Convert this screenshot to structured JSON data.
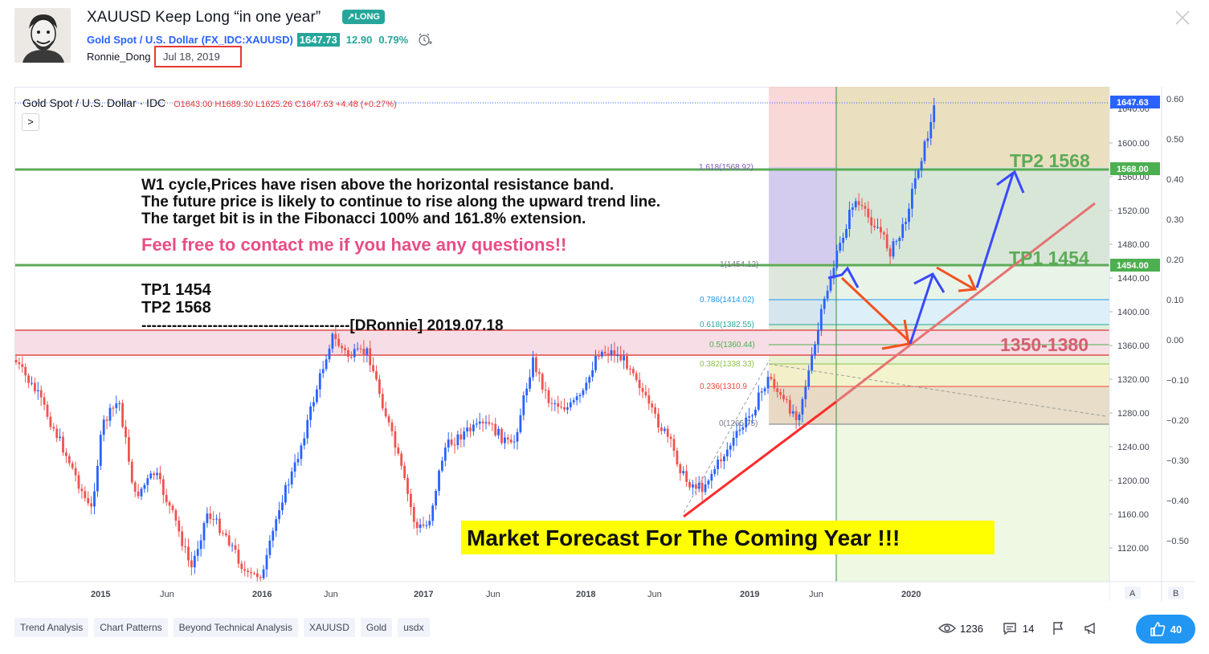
{
  "header": {
    "title": "XAUUSD Keep Long “in one year”",
    "badge": "↗LONG",
    "symbol_name": "Gold Spot / U.S. Dollar",
    "symbol_ticker": "(FX_IDC:XAUUSD)",
    "price": "1647.73",
    "change": "12.90",
    "change_pct": "0.79%",
    "author": "Ronnie_Dong",
    "date": "Jul 18, 2019"
  },
  "chart": {
    "legend_symbol": "Gold Spot / U.S. Dollar · IDC",
    "legend_ohlc": "O1643.00 H1689.30 L1625.26 C1647.63 +4.48 (+0.27%)",
    "collapse_label": ">",
    "x_ticks": [
      "2015",
      "Jun",
      "2016",
      "Jun",
      "2017",
      "Jun",
      "2018",
      "Jun",
      "2019",
      "Jun",
      "2020"
    ],
    "y_ticks": [
      "1640.00",
      "1600.00",
      "1560.00",
      "1520.00",
      "1480.00",
      "1440.00",
      "1400.00",
      "1360.00",
      "1320.00",
      "1280.00",
      "1240.00",
      "1200.00",
      "1160.00",
      "1120.00"
    ],
    "y2_ticks": [
      "0.60",
      "0.50",
      "0.40",
      "0.30",
      "0.20",
      "0.10",
      "0.00",
      "−0.10",
      "−0.20",
      "−0.30",
      "−0.40",
      "−0.50"
    ],
    "price_tags": [
      {
        "label": "1647.63",
        "color": "#2962ff"
      },
      {
        "label": "1568.00",
        "color": "#4caf50"
      },
      {
        "label": "1454.00",
        "color": "#4caf50"
      }
    ],
    "fib_labels": [
      {
        "label": "1.618(1568.92)",
        "color": "#7e57c2"
      },
      {
        "label": "1(1454.12)",
        "color": "#787b86"
      },
      {
        "label": "0.786(1414.02)",
        "color": "#2196f3"
      },
      {
        "label": "0.618(1382.55)",
        "color": "#26a69a"
      },
      {
        "label": "0.5(1360.44)",
        "color": "#4caf50"
      },
      {
        "label": "0.382(1338.33)",
        "color": "#8bc34a"
      },
      {
        "label": "0.236(1310.9",
        "color": "#f44336"
      },
      {
        "label": "0(1265.75)",
        "color": "#787b86"
      }
    ],
    "annotations": {
      "line1": "W1 cycle,Prices have risen above the horizontal resistance band.",
      "line2": "The future price is likely to continue to rise along the upward trend line.",
      "line3": "The target bit is in the Fibonacci 100% and 161.8% extension.",
      "contact": "Feel free to contact me if you have any questions!!",
      "tp1": "TP1  1454",
      "tp2": "TP2  1568",
      "signature": "-----------------------------------------[DRonnie]  2019.07.18",
      "tp2_label": "TP2 1568",
      "tp1_label": "TP1 1454",
      "zone_label": "1350-1380",
      "forecast": "Market  Forecast  For  The  Coming  Year !!!"
    },
    "scale_buttons": [
      "A",
      "B"
    ]
  },
  "tags": [
    "Trend Analysis",
    "Chart Patterns",
    "Beyond Technical Analysis",
    "XAUUSD",
    "Gold",
    "usdx"
  ],
  "stats": {
    "views": "1236",
    "comments": "14",
    "likes": "40"
  }
}
